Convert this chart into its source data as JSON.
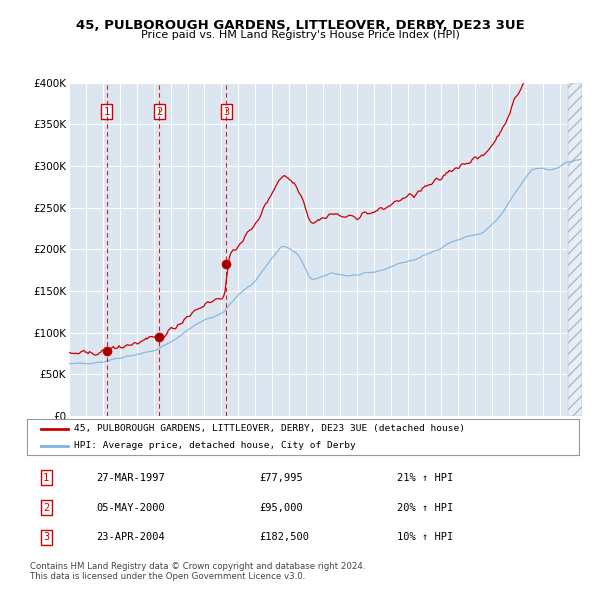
{
  "title1": "45, PULBOROUGH GARDENS, LITTLEOVER, DERBY, DE23 3UE",
  "title2": "Price paid vs. HM Land Registry's House Price Index (HPI)",
  "purchase_dates_float": [
    1997.23,
    2000.34,
    2004.3
  ],
  "purchase_prices": [
    77995,
    95000,
    182500
  ],
  "purchase_labels": [
    "1",
    "2",
    "3"
  ],
  "legend_line1": "45, PULBOROUGH GARDENS, LITTLEOVER, DERBY, DE23 3UE (detached house)",
  "legend_line2": "HPI: Average price, detached house, City of Derby",
  "table_rows": [
    [
      "1",
      "27-MAR-1997",
      "£77,995",
      "21% ↑ HPI"
    ],
    [
      "2",
      "05-MAY-2000",
      "£95,000",
      "20% ↑ HPI"
    ],
    [
      "3",
      "23-APR-2004",
      "£182,500",
      "10% ↑ HPI"
    ]
  ],
  "footnote1": "Contains HM Land Registry data © Crown copyright and database right 2024.",
  "footnote2": "This data is licensed under the Open Government Licence v3.0.",
  "hpi_color": "#7eb3e0",
  "property_color": "#cc0000",
  "dashed_color": "#cc0000",
  "bg_color": "#dce6f1",
  "grid_color": "#ffffff",
  "ylim": [
    0,
    400000
  ],
  "yticks": [
    0,
    50000,
    100000,
    150000,
    200000,
    250000,
    300000,
    350000,
    400000
  ],
  "start_year": 1995,
  "end_year": 2025
}
